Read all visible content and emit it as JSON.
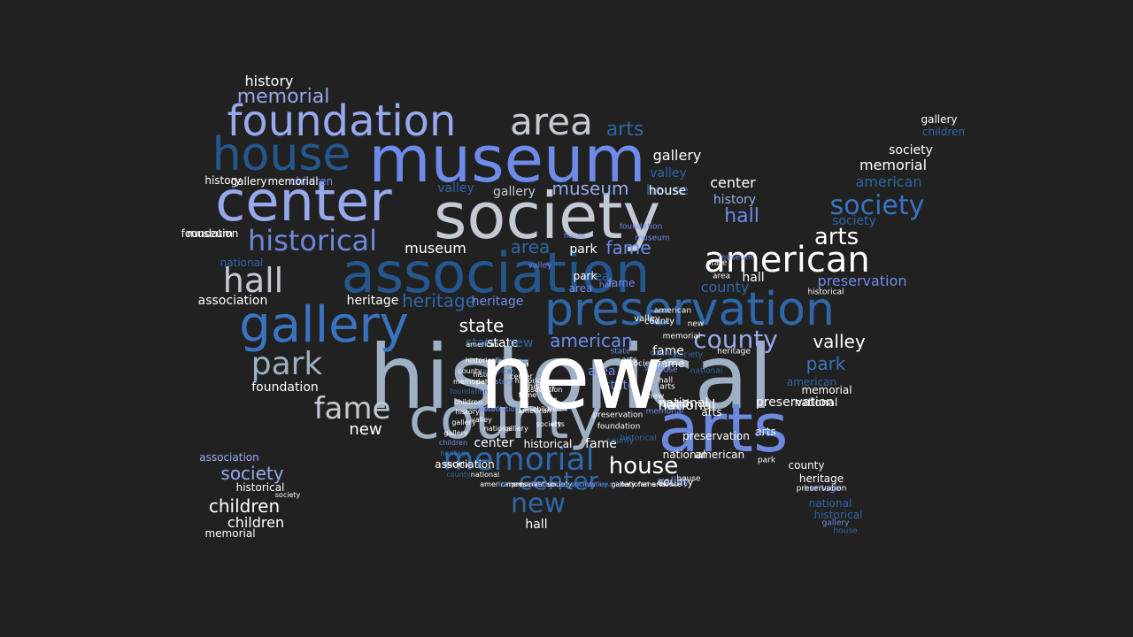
{
  "background": "#212121",
  "palette": [
    "#6f8bea",
    "#97a8ec",
    "#c3cad4",
    "#2f67a8",
    "#25578f",
    "#ffffff",
    "#6e88dd",
    "#9fb0c4",
    "#3a74c0"
  ],
  "words": [
    {
      "text": "historical",
      "color": "#9fb0c4"
    },
    {
      "text": "museum",
      "color": "#6f8bea"
    },
    {
      "text": "society",
      "color": "#c3cad4"
    },
    {
      "text": "county",
      "color": "#9fb0c4"
    },
    {
      "text": "arts",
      "color": "#6e88dd"
    },
    {
      "text": "association",
      "color": "#25578f"
    },
    {
      "text": "center",
      "color": "#97a8ec"
    },
    {
      "text": "preservation",
      "color": "#2f67a8"
    },
    {
      "text": "gallery",
      "color": "#3a74c0"
    },
    {
      "text": "foundation",
      "color": "#97a8ec"
    },
    {
      "text": "house",
      "color": "#25578f"
    },
    {
      "text": "area",
      "color": "#c3cad4"
    },
    {
      "text": "american",
      "color": "#ffffff"
    },
    {
      "text": "memorial",
      "color": "#2f67a8"
    },
    {
      "text": "hall",
      "color": "#c3cad4"
    },
    {
      "text": "historical",
      "color": "#6e88dd"
    },
    {
      "text": "park",
      "color": "#9fb0c4"
    },
    {
      "text": "fame",
      "color": "#c3cad4"
    },
    {
      "text": "society",
      "color": "#3a74c0"
    },
    {
      "text": "county",
      "color": "#97a8ec"
    },
    {
      "text": "new",
      "color": "#2f67a8"
    },
    {
      "text": "center",
      "color": "#2f67a8"
    },
    {
      "text": "house",
      "color": "#ffffff"
    },
    {
      "text": "arts",
      "color": "#ffffff"
    },
    {
      "text": "memorial",
      "color": "#97a8ec"
    },
    {
      "text": "history",
      "color": "#ffffff"
    },
    {
      "text": "gallery",
      "color": "#ffffff"
    },
    {
      "text": "arts",
      "color": "#2f67a8"
    },
    {
      "text": "museum",
      "color": "#97a8ec"
    },
    {
      "text": "hall",
      "color": "#6f8bea"
    },
    {
      "text": "state",
      "color": "#ffffff"
    },
    {
      "text": "american",
      "color": "#6f8bea"
    },
    {
      "text": "valley",
      "color": "#ffffff"
    },
    {
      "text": "park",
      "color": "#3a74c0"
    },
    {
      "text": "national",
      "color": "#ffffff"
    },
    {
      "text": "fame",
      "color": "#6f8bea"
    },
    {
      "text": "heritage",
      "color": "#2f67a8"
    },
    {
      "text": "heritage",
      "color": "#ffffff"
    },
    {
      "text": "area",
      "color": "#2f67a8"
    },
    {
      "text": "fame",
      "color": "#ffffff"
    },
    {
      "text": "house",
      "color": "#2f67a8"
    },
    {
      "text": "children",
      "color": "#ffffff"
    },
    {
      "text": "society",
      "color": "#97a8ec"
    },
    {
      "text": "children",
      "color": "#ffffff"
    },
    {
      "text": "association",
      "color": "#ffffff"
    },
    {
      "text": "foundation",
      "color": "#ffffff"
    },
    {
      "text": "preservation",
      "color": "#ffffff"
    },
    {
      "text": "society",
      "color": "#ffffff"
    },
    {
      "text": "memorial",
      "color": "#ffffff"
    },
    {
      "text": "american",
      "color": "#2f67a8"
    },
    {
      "text": "gallery",
      "color": "#ffffff"
    },
    {
      "text": "children",
      "color": "#2f67a8"
    },
    {
      "text": "preservation",
      "color": "#6f8bea"
    },
    {
      "text": "county",
      "color": "#2f67a8"
    },
    {
      "text": "valley",
      "color": "#2f67a8"
    },
    {
      "text": "history",
      "color": "#97a8ec"
    },
    {
      "text": "hall",
      "color": "#ffffff"
    },
    {
      "text": "center",
      "color": "#ffffff"
    },
    {
      "text": "museum",
      "color": "#ffffff"
    },
    {
      "text": "history",
      "color": "#ffffff"
    },
    {
      "text": "foundation",
      "color": "#ffffff"
    },
    {
      "text": "historical",
      "color": "#ffffff"
    },
    {
      "text": "state",
      "color": "#2f67a8"
    },
    {
      "text": "state",
      "color": "#ffffff"
    },
    {
      "text": "area",
      "color": "#2f67a8"
    },
    {
      "text": "new",
      "color": "#ffffff"
    },
    {
      "text": "new",
      "color": "#2f67a8"
    },
    {
      "text": "park",
      "color": "#ffffff"
    },
    {
      "text": "national",
      "color": "#ffffff"
    },
    {
      "text": "national",
      "color": "#ffffff"
    },
    {
      "text": "hall",
      "color": "#ffffff"
    },
    {
      "text": "museum",
      "color": "#ffffff"
    },
    {
      "text": "association",
      "color": "#ffffff"
    },
    {
      "text": "association",
      "color": "#97a8ec"
    },
    {
      "text": "heritage",
      "color": "#6f8bea"
    },
    {
      "text": "fame",
      "color": "#ffffff"
    },
    {
      "text": "memorial",
      "color": "#ffffff"
    },
    {
      "text": "county",
      "color": "#ffffff"
    },
    {
      "text": "valley",
      "color": "#2f67a8"
    },
    {
      "text": "arts",
      "color": "#ffffff"
    },
    {
      "text": "house",
      "color": "#ffffff"
    },
    {
      "text": "gallery",
      "color": "#c3cad4"
    },
    {
      "text": "gallery",
      "color": "#ffffff"
    },
    {
      "text": "children",
      "color": "#6f8bea"
    },
    {
      "text": "society",
      "color": "#ffffff"
    },
    {
      "text": "memorial",
      "color": "#ffffff"
    },
    {
      "text": "american",
      "color": "#2f67a8"
    },
    {
      "text": "society",
      "color": "#2f67a8"
    },
    {
      "text": "national",
      "color": "#2f67a8"
    },
    {
      "text": "arts",
      "color": "#ffffff"
    },
    {
      "text": "heritage",
      "color": "#ffffff"
    },
    {
      "text": "heritage",
      "color": "#6f8bea"
    },
    {
      "text": "national",
      "color": "#2f67a8"
    },
    {
      "text": "historical",
      "color": "#2f67a8"
    },
    {
      "text": "gallery",
      "color": "#6f8bea"
    },
    {
      "text": "house",
      "color": "#2f67a8"
    },
    {
      "text": "county",
      "color": "#ffffff"
    },
    {
      "text": "valley",
      "color": "#6f8bea"
    },
    {
      "text": "american",
      "color": "#ffffff"
    },
    {
      "text": "arts",
      "color": "#6f8bea"
    },
    {
      "text": "fame",
      "color": "#6f8bea"
    },
    {
      "text": "preservation",
      "color": "#ffffff"
    },
    {
      "text": "national",
      "color": "#ffffff"
    },
    {
      "text": "memorial",
      "color": "#ffffff"
    },
    {
      "text": "area",
      "color": "#6f8bea"
    },
    {
      "text": "state",
      "color": "#6f8bea"
    },
    {
      "text": "area",
      "color": "#6f8bea"
    },
    {
      "text": "park",
      "color": "#ffffff"
    },
    {
      "text": "fame",
      "color": "#ffffff"
    },
    {
      "text": "hall",
      "color": "#ffffff"
    },
    {
      "text": "new",
      "color": "#ffffff"
    },
    {
      "text": "valley",
      "color": "#ffffff"
    },
    {
      "text": "county",
      "color": "#ffffff"
    },
    {
      "text": "heritage",
      "color": "#ffffff"
    },
    {
      "text": "house",
      "color": "#ffffff"
    },
    {
      "text": "preservation",
      "color": "#ffffff"
    },
    {
      "text": "historical",
      "color": "#ffffff"
    },
    {
      "text": "center",
      "color": "#ffffff"
    },
    {
      "text": "historical",
      "color": "#ffffff"
    },
    {
      "text": "fame",
      "color": "#ffffff"
    },
    {
      "text": "arts",
      "color": "#ffffff"
    },
    {
      "text": "american",
      "color": "#ffffff"
    },
    {
      "text": "park",
      "color": "#ffffff"
    },
    {
      "text": "state",
      "color": "#ffffff"
    },
    {
      "text": "museum",
      "color": "#6f8bea"
    },
    {
      "text": "valley",
      "color": "#6f8bea"
    },
    {
      "text": "house",
      "color": "#6f8bea"
    },
    {
      "text": "hall",
      "color": "#6f8bea"
    },
    {
      "text": "area",
      "color": "#ffffff"
    },
    {
      "text": "new",
      "color": "#ffffff"
    },
    {
      "text": "center",
      "color": "#3a74c0"
    },
    {
      "text": "state",
      "color": "#6f8bea"
    },
    {
      "text": "arts",
      "color": "#ffffff"
    },
    {
      "text": "society",
      "color": "#ffffff"
    },
    {
      "text": "gallery",
      "color": "#6f8bea"
    },
    {
      "text": "county",
      "color": "#6f8bea"
    },
    {
      "text": "house",
      "color": "#6f8bea"
    },
    {
      "text": "memorial",
      "color": "#6f8bea"
    },
    {
      "text": "foundation",
      "color": "#6f8bea"
    },
    {
      "text": "museum",
      "color": "#6f8bea"
    },
    {
      "text": "memorial",
      "color": "#ffffff"
    },
    {
      "text": "society",
      "color": "#2f67a8"
    },
    {
      "text": "national",
      "color": "#2f67a8"
    },
    {
      "text": "history",
      "color": "#ffffff"
    },
    {
      "text": "preservation",
      "color": "#ffffff"
    },
    {
      "text": "foundation",
      "color": "#ffffff"
    },
    {
      "text": "county",
      "color": "#2f67a8"
    },
    {
      "text": "historical",
      "color": "#2f67a8"
    },
    {
      "text": "history",
      "color": "#ffffff"
    },
    {
      "text": "children",
      "color": "#6f8bea"
    },
    {
      "text": "american",
      "color": "#3a74c0"
    },
    {
      "text": "historical",
      "color": "#ffffff"
    },
    {
      "text": "park",
      "color": "#ffffff"
    },
    {
      "text": "history",
      "color": "#6f8bea"
    },
    {
      "text": "children",
      "color": "#6f8bea"
    },
    {
      "text": "association",
      "color": "#6f8bea"
    },
    {
      "text": "center",
      "color": "#ffffff"
    },
    {
      "text": "fame",
      "color": "#ffffff"
    },
    {
      "text": "historical",
      "color": "#ffffff"
    },
    {
      "text": "association",
      "color": "#ffffff"
    },
    {
      "text": "american",
      "color": "#ffffff"
    },
    {
      "text": "children",
      "color": "#ffffff"
    },
    {
      "text": "society",
      "color": "#ffffff"
    },
    {
      "text": "arts",
      "color": "#ffffff"
    },
    {
      "text": "gallery",
      "color": "#ffffff"
    },
    {
      "text": "national",
      "color": "#ffffff"
    },
    {
      "text": "valley",
      "color": "#ffffff"
    },
    {
      "text": "american",
      "color": "#ffffff"
    },
    {
      "text": "county",
      "color": "#ffffff"
    },
    {
      "text": "memorial",
      "color": "#ffffff"
    },
    {
      "text": "foundation",
      "color": "#2f67a8"
    },
    {
      "text": "children",
      "color": "#ffffff"
    },
    {
      "text": "history",
      "color": "#ffffff"
    },
    {
      "text": "gallery",
      "color": "#ffffff"
    },
    {
      "text": "gallery",
      "color": "#ffffff"
    },
    {
      "text": "children",
      "color": "#6f8bea"
    },
    {
      "text": "heritage",
      "color": "#2f67a8"
    },
    {
      "text": "society",
      "color": "#ffffff"
    },
    {
      "text": "county",
      "color": "#2f67a8"
    },
    {
      "text": "national",
      "color": "#ffffff"
    },
    {
      "text": "american",
      "color": "#ffffff"
    },
    {
      "text": "history",
      "color": "#3a74c0"
    },
    {
      "text": "memorial",
      "color": "#ffffff"
    },
    {
      "text": "preservation",
      "color": "#ffffff"
    },
    {
      "text": "foundation",
      "color": "#6f8bea"
    },
    {
      "text": "society",
      "color": "#ffffff"
    },
    {
      "text": "museum",
      "color": "#2f67a8"
    },
    {
      "text": "society",
      "color": "#6f8bea"
    },
    {
      "text": "valley",
      "color": "#6f8bea"
    },
    {
      "text": "county",
      "color": "#2f67a8"
    },
    {
      "text": "gallery",
      "color": "#ffffff"
    },
    {
      "text": "national",
      "color": "#ffffff"
    },
    {
      "text": "fame",
      "color": "#ffffff"
    },
    {
      "text": "arts",
      "color": "#ffffff"
    },
    {
      "text": "house",
      "color": "#ffffff"
    },
    {
      "text": "new",
      "color": "#ffffff"
    }
  ]
}
